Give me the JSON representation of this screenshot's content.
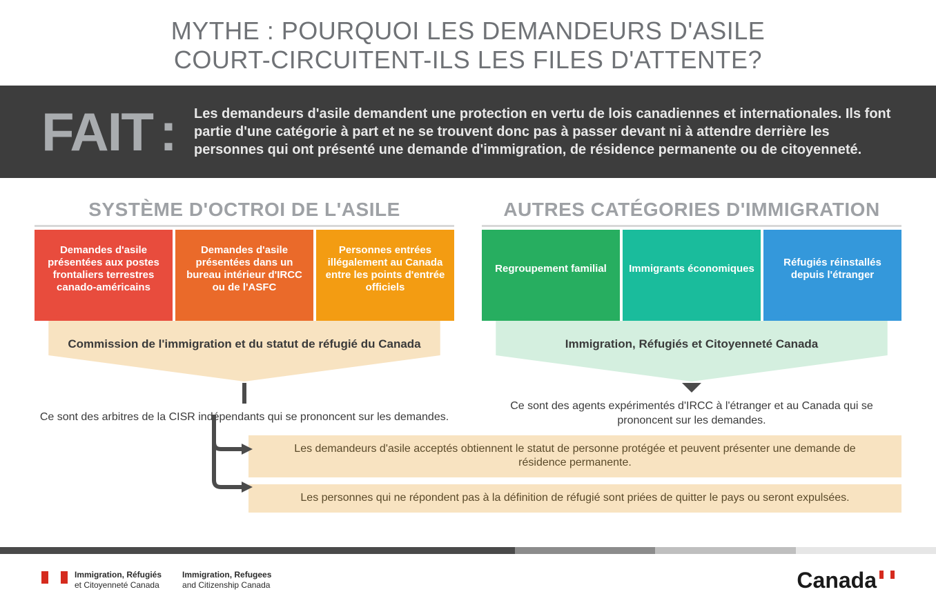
{
  "title_line1": "MYTHE : POURQUOI LES DEMANDEURS D'ASILE",
  "title_line2": "COURT-CIRCUITENT-ILS LES FILES D'ATTENTE?",
  "fact_label": "FAIT",
  "fact_text": "Les demandeurs d'asile demandent une protection en vertu de lois canadiennes et internationales. Ils font partie d'une catégorie à part et ne se trouvent donc pas à passer devant ni à attendre derrière les personnes qui ont présenté une demande d'immigration, de résidence permanente ou de citoyenneté.",
  "fact_bg": "#3d3d3d",
  "fact_label_color": "#a9acaf",
  "left": {
    "heading": "SYSTÈME D'OCTROI DE L'ASILE",
    "boxes": [
      {
        "text": "Demandes d'asile présentées aux postes frontaliers terrestres canado-américains",
        "color": "#e84c3d"
      },
      {
        "text": "Demandes d'asile présentées dans un bureau intérieur d'IRCC ou de l'ASFC",
        "color": "#ea6a2a"
      },
      {
        "text": "Personnes entrées illégalement au Canada entre les points d'entrée officiels",
        "color": "#f39c12"
      }
    ],
    "merge_label": "Commission de l'immigration et du statut de réfugié du Canada",
    "merge_color": "#f8e3c1",
    "desc": "Ce sont des arbitres de la CISR indépendants qui se prononcent sur les demandes."
  },
  "right": {
    "heading": "AUTRES CATÉGORIES D'IMMIGRATION",
    "boxes": [
      {
        "text": "Regroupement familial",
        "color": "#27ae60"
      },
      {
        "text": "Immigrants économiques",
        "color": "#1abc9c"
      },
      {
        "text": "Réfugiés réinstallés depuis l'étranger",
        "color": "#3498db"
      }
    ],
    "merge_label": "Immigration, Réfugiés et Citoyenneté Canada",
    "merge_color": "#d4efdf",
    "desc": "Ce sont des agents expérimentés d'IRCC à l'étranger et au Canada qui se prononcent sur les demandes."
  },
  "outcomes": [
    "Les demandeurs d'asile acceptés obtiennent le statut de personne protégée et peuvent présenter une demande de résidence permanente.",
    "Les personnes qui ne répondent pas à la définition de réfugié sont priées de quitter le pays ou seront expulsées."
  ],
  "outcome_bg": "#f8e3c1",
  "connector_color": "#4b4b4b",
  "footer_bar_colors": [
    "#4a4a4a",
    "#8c8c8c",
    "#bfbfbf",
    "#e6e6e6"
  ],
  "footer_bar_widths": [
    "55%",
    "15%",
    "15%",
    "15%"
  ],
  "dept_fr_1": "Immigration, Réfugiés",
  "dept_fr_2": "et Citoyenneté Canada",
  "dept_en_1": "Immigration, Refugees",
  "dept_en_2": "and Citizenship Canada",
  "wordmark": "Canada",
  "heading_color": "#9ea1a5",
  "title_color": "#6f7276"
}
